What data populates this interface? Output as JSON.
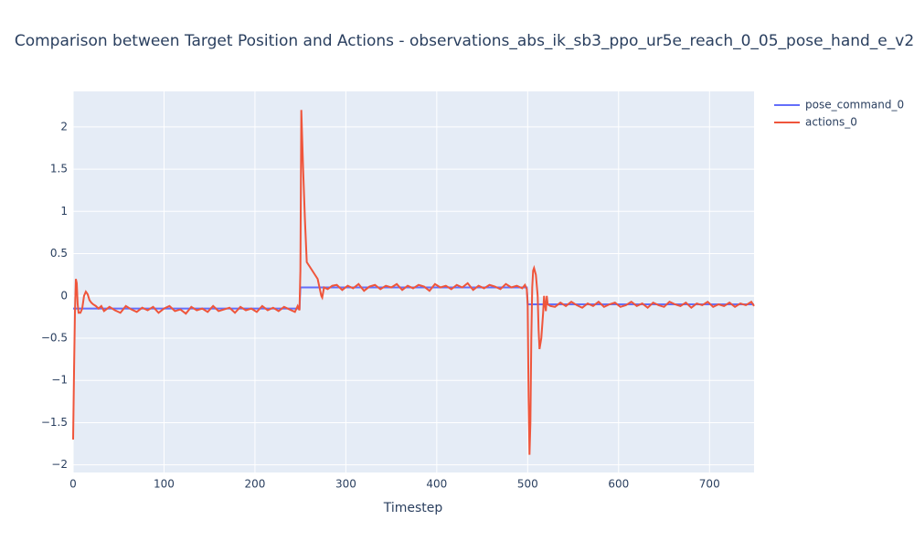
{
  "chart_data": {
    "type": "line",
    "title": "Comparison between Target Position and Actions - observations_abs_ik_sb3_ppo_ur5e_reach_0_05_pose_hand_e_v2",
    "x_label": "Timestep",
    "xlim": [
      0,
      749
    ],
    "xticks": [
      0,
      100,
      200,
      300,
      400,
      500,
      600,
      700
    ],
    "ylim": [
      -2.09,
      2.42
    ],
    "yticks": [
      {
        "value": -2,
        "label": "−2"
      },
      {
        "value": -1.5,
        "label": "−1.5"
      },
      {
        "value": -1,
        "label": "−1"
      },
      {
        "value": -0.5,
        "label": "−0.5"
      },
      0,
      0.5,
      1,
      1.5,
      2
    ],
    "grid": true,
    "legend": "outside-right",
    "series": [
      {
        "name": "pose_command_0",
        "color": "#636efa",
        "x": [
          0,
          249,
          250,
          499,
          500,
          749
        ],
        "values": [
          -0.15,
          -0.15,
          0.1,
          0.1,
          -0.1,
          -0.1
        ]
      },
      {
        "name": "actions_0",
        "color": "#ef553b",
        "x": [
          0,
          1,
          2,
          3,
          4,
          5,
          6,
          8,
          10,
          12,
          14,
          16,
          18,
          20,
          22,
          25,
          28,
          31,
          34,
          40,
          46,
          52,
          58,
          64,
          70,
          76,
          82,
          88,
          94,
          100,
          106,
          112,
          118,
          124,
          130,
          136,
          142,
          148,
          154,
          160,
          166,
          172,
          178,
          184,
          190,
          196,
          202,
          208,
          214,
          220,
          226,
          232,
          238,
          244,
          247,
          249,
          250,
          251,
          253,
          255,
          257,
          260,
          263,
          266,
          269,
          271,
          273,
          274,
          276,
          280,
          285,
          290,
          296,
          302,
          308,
          314,
          320,
          326,
          332,
          338,
          344,
          350,
          356,
          362,
          368,
          374,
          380,
          386,
          392,
          398,
          404,
          410,
          416,
          422,
          428,
          434,
          440,
          446,
          452,
          458,
          464,
          470,
          476,
          482,
          488,
          494,
          497,
          499,
          500,
          501,
          502,
          503,
          504,
          505,
          506,
          507,
          509,
          511,
          512,
          513,
          515,
          517,
          518,
          519,
          520,
          521,
          522,
          525,
          530,
          536,
          542,
          548,
          554,
          560,
          566,
          572,
          578,
          584,
          590,
          596,
          602,
          608,
          614,
          620,
          626,
          632,
          638,
          644,
          650,
          656,
          662,
          668,
          674,
          680,
          686,
          692,
          698,
          704,
          710,
          716,
          722,
          728,
          734,
          740,
          746,
          749
        ],
        "values": [
          -1.7,
          -0.9,
          -0.2,
          0.2,
          0.15,
          -0.1,
          -0.2,
          -0.2,
          -0.15,
          0.0,
          0.05,
          0.02,
          -0.05,
          -0.08,
          -0.1,
          -0.12,
          -0.15,
          -0.12,
          -0.18,
          -0.13,
          -0.17,
          -0.2,
          -0.12,
          -0.16,
          -0.19,
          -0.14,
          -0.17,
          -0.13,
          -0.2,
          -0.15,
          -0.12,
          -0.18,
          -0.16,
          -0.21,
          -0.13,
          -0.17,
          -0.15,
          -0.19,
          -0.12,
          -0.18,
          -0.16,
          -0.14,
          -0.2,
          -0.13,
          -0.17,
          -0.15,
          -0.19,
          -0.12,
          -0.17,
          -0.14,
          -0.18,
          -0.13,
          -0.16,
          -0.19,
          -0.12,
          -0.17,
          0.3,
          2.2,
          1.5,
          0.9,
          0.4,
          0.35,
          0.3,
          0.25,
          0.2,
          0.1,
          0.0,
          -0.02,
          0.1,
          0.08,
          0.12,
          0.13,
          0.07,
          0.12,
          0.09,
          0.14,
          0.06,
          0.11,
          0.13,
          0.08,
          0.12,
          0.1,
          0.14,
          0.07,
          0.12,
          0.09,
          0.13,
          0.11,
          0.06,
          0.14,
          0.1,
          0.12,
          0.08,
          0.13,
          0.1,
          0.15,
          0.07,
          0.12,
          0.09,
          0.13,
          0.11,
          0.08,
          0.14,
          0.1,
          0.12,
          0.09,
          0.13,
          0.08,
          -0.1,
          -1.2,
          -1.88,
          -1.5,
          -0.5,
          0.1,
          0.3,
          0.33,
          0.25,
          0.0,
          -0.4,
          -0.63,
          -0.5,
          -0.2,
          0.0,
          -0.1,
          -0.18,
          0.0,
          -0.1,
          -0.12,
          -0.13,
          -0.08,
          -0.12,
          -0.07,
          -0.11,
          -0.14,
          -0.09,
          -0.12,
          -0.07,
          -0.13,
          -0.1,
          -0.08,
          -0.13,
          -0.11,
          -0.07,
          -0.12,
          -0.09,
          -0.14,
          -0.08,
          -0.11,
          -0.13,
          -0.07,
          -0.1,
          -0.12,
          -0.08,
          -0.14,
          -0.09,
          -0.11,
          -0.07,
          -0.13,
          -0.1,
          -0.12,
          -0.08,
          -0.13,
          -0.09,
          -0.11,
          -0.07,
          -0.12
        ]
      }
    ]
  }
}
